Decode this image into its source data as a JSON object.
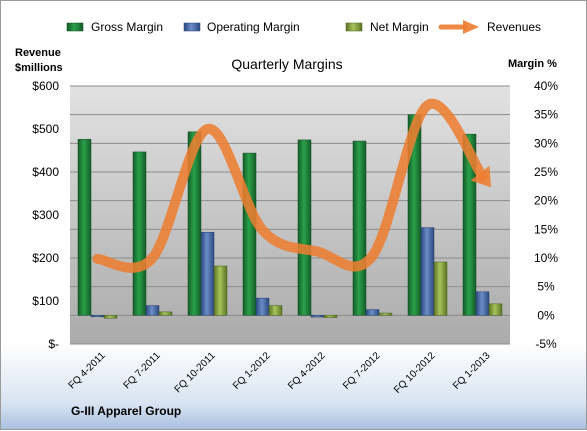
{
  "chart_data": {
    "type": "bar",
    "title": "Quarterly Margins",
    "company": "G-III Apparel Group",
    "categories": [
      "FQ 4-2011",
      "FQ 7-2011",
      "FQ 10-2011",
      "FQ 1-2012",
      "FQ 4-2012",
      "FQ 7-2012",
      "FQ 10-2012",
      "FQ 1-2013"
    ],
    "left_axis": {
      "label_line1": "Revenue",
      "label_line2": "$millions",
      "range": [
        0,
        600
      ],
      "ticks": [
        "$-",
        "$100",
        "$200",
        "$300",
        "$400",
        "$500",
        "$600"
      ]
    },
    "right_axis": {
      "label": "Margin %",
      "range": [
        -5,
        40
      ],
      "ticks": [
        "-5%",
        "0%",
        "5%",
        "10%",
        "15%",
        "20%",
        "25%",
        "30%",
        "35%",
        "40%"
      ]
    },
    "series": [
      {
        "name": "Gross Margin",
        "axis": "right",
        "kind": "bar",
        "color": "#1e8a3c",
        "values": [
          30.7,
          28.5,
          32.0,
          28.3,
          30.6,
          30.4,
          35.0,
          31.6
        ]
      },
      {
        "name": "Operating Margin",
        "axis": "right",
        "kind": "bar",
        "color": "#4a6fb0",
        "values": [
          -0.2,
          1.7,
          14.5,
          3.0,
          -0.3,
          1.0,
          15.3,
          4.1
        ]
      },
      {
        "name": "Net Margin",
        "axis": "right",
        "kind": "bar",
        "color": "#8aa840",
        "values": [
          -0.5,
          0.6,
          8.6,
          1.7,
          -0.4,
          0.4,
          9.3,
          2.0
        ]
      },
      {
        "name": "Revenues",
        "axis": "left",
        "kind": "line",
        "color": "#ed7d31",
        "values": [
          198,
          200,
          500,
          265,
          215,
          205,
          555,
          390
        ]
      }
    ],
    "grid": true,
    "legend": "top"
  }
}
